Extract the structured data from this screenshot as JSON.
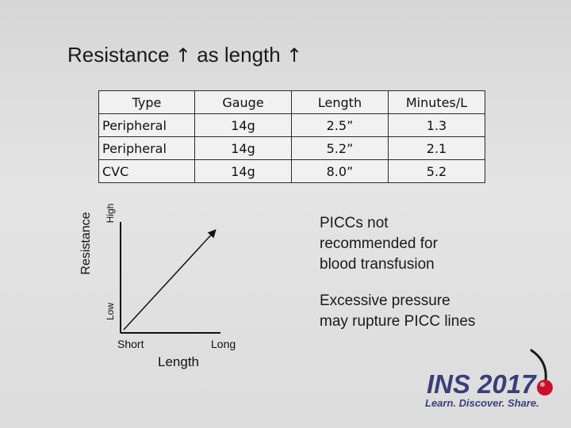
{
  "slide": {
    "title_text": "Resistance",
    "title_middle": "as length",
    "arrow_glyph": "↑"
  },
  "table": {
    "headers": [
      "Type",
      "Gauge",
      "Length",
      "Minutes/L"
    ],
    "rows": [
      [
        "Peripheral",
        "14g",
        "2.5”",
        "1.3"
      ],
      [
        "Peripheral",
        "14g",
        "5.2”",
        "2.1"
      ],
      [
        "CVC",
        "14g",
        "8.0”",
        "5.2"
      ]
    ]
  },
  "graph": {
    "y_axis_label": "Resistance",
    "y_tick_high": "High",
    "y_tick_low": "Low",
    "x_axis_label": "Length",
    "x_tick_short": "Short",
    "x_tick_long": "Long"
  },
  "notes": {
    "note1_line1": "PICCs not",
    "note1_line2": "recommended for",
    "note1_line3": "blood transfusion",
    "note2_line1": "Excessive pressure",
    "note2_line2": "may rupture PICC lines"
  },
  "logo": {
    "name": "INS 2017",
    "tagline": "Learn. Discover. Share.",
    "brand_color": "#3a3f7a",
    "accent_color": "#c8102e"
  }
}
